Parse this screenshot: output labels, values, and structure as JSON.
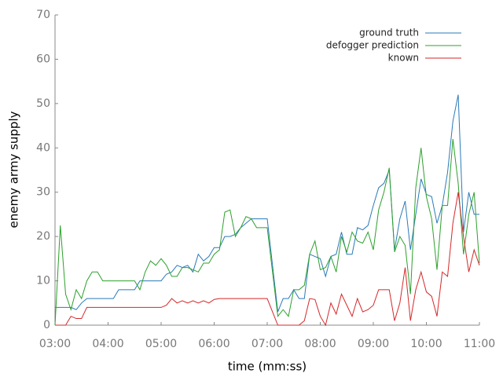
{
  "chart_data": {
    "type": "line",
    "xlabel": "time (mm:ss)",
    "ylabel": "enemy army supply",
    "x": [
      180,
      186,
      192,
      198,
      204,
      210,
      216,
      222,
      228,
      234,
      240,
      246,
      252,
      258,
      264,
      270,
      276,
      282,
      288,
      294,
      300,
      306,
      312,
      318,
      324,
      330,
      336,
      342,
      348,
      354,
      360,
      366,
      372,
      378,
      384,
      390,
      396,
      402,
      408,
      414,
      420,
      426,
      432,
      438,
      444,
      450,
      456,
      462,
      468,
      474,
      480,
      486,
      492,
      498,
      504,
      510,
      516,
      522,
      528,
      534,
      540,
      546,
      552,
      558,
      564,
      570,
      576,
      582,
      588,
      594,
      600,
      606,
      612,
      618,
      624,
      630,
      636,
      642,
      648,
      654,
      660
    ],
    "series": [
      {
        "name": "ground truth",
        "color": "#2a7ab8",
        "values": [
          4,
          4,
          4,
          4,
          3.5,
          5,
          6,
          6,
          6,
          6,
          6,
          6,
          8,
          8,
          8,
          8,
          10,
          10,
          10,
          10,
          10,
          11.5,
          12,
          13.5,
          13,
          13.5,
          12,
          16,
          14.5,
          15.5,
          17.5,
          17.5,
          20,
          20,
          20.5,
          22,
          23,
          24,
          24,
          24,
          24,
          13.5,
          3,
          6,
          6,
          8,
          6,
          6,
          16,
          15.5,
          15,
          11,
          15.5,
          16,
          21,
          16,
          16,
          22,
          21.5,
          22.5,
          27,
          31,
          32,
          35,
          17,
          24,
          28,
          17,
          25,
          33,
          29.5,
          29,
          23,
          27,
          34.5,
          46,
          52,
          21,
          30,
          25,
          25
        ]
      },
      {
        "name": "defogger prediction",
        "color": "#2ca02c",
        "values": [
          0,
          22.5,
          7,
          3.5,
          8,
          6,
          10,
          12,
          12,
          10,
          10,
          10,
          10,
          10,
          10,
          10,
          8,
          12,
          14.5,
          13.5,
          15,
          13.5,
          11,
          11,
          13,
          13,
          12.5,
          12,
          14,
          14,
          16,
          17,
          25.5,
          26,
          20,
          22,
          24.5,
          24,
          22,
          22,
          22,
          12,
          2,
          3.5,
          2,
          8,
          8,
          9,
          16,
          19,
          12.5,
          13,
          15.5,
          12,
          20,
          16.5,
          21,
          19,
          18.5,
          21,
          17,
          26,
          30,
          35.5,
          16.5,
          20,
          18,
          7,
          31,
          40,
          29,
          24,
          12.5,
          27,
          27,
          42,
          32,
          16,
          25,
          30,
          14
        ]
      },
      {
        "name": "known",
        "color": "#d62728",
        "values": [
          0,
          0,
          0,
          2,
          1.5,
          1.5,
          4,
          4,
          4,
          4,
          4,
          4,
          4,
          4,
          4,
          4,
          4,
          4,
          4,
          4,
          4,
          4.5,
          6,
          5,
          5.5,
          5,
          5.5,
          5,
          5.5,
          5,
          5.8,
          6,
          6,
          6,
          6,
          6,
          6,
          6,
          6,
          6,
          6,
          3,
          0,
          0,
          0,
          0,
          0,
          1,
          6,
          5.8,
          2,
          0,
          5,
          2.5,
          7,
          4.5,
          2,
          6,
          3,
          3.5,
          4.5,
          8,
          8,
          8,
          1,
          5,
          13,
          1,
          8,
          12,
          7.5,
          6.5,
          2,
          12,
          11,
          23,
          30,
          20,
          12,
          17,
          13.5
        ]
      }
    ],
    "xlim": [
      180,
      660
    ],
    "xticks": [
      {
        "value": 180,
        "label": "03:00"
      },
      {
        "value": 240,
        "label": "04:00"
      },
      {
        "value": 300,
        "label": "05:00"
      },
      {
        "value": 360,
        "label": "06:00"
      },
      {
        "value": 420,
        "label": "07:00"
      },
      {
        "value": 480,
        "label": "08:00"
      },
      {
        "value": 540,
        "label": "09:00"
      },
      {
        "value": 600,
        "label": "10:00"
      },
      {
        "value": 660,
        "label": "11:00"
      }
    ],
    "ylim": [
      0,
      70
    ],
    "yticks": [
      0,
      10,
      20,
      30,
      40,
      50,
      60,
      70
    ],
    "grid": false,
    "legend": "upper right"
  }
}
